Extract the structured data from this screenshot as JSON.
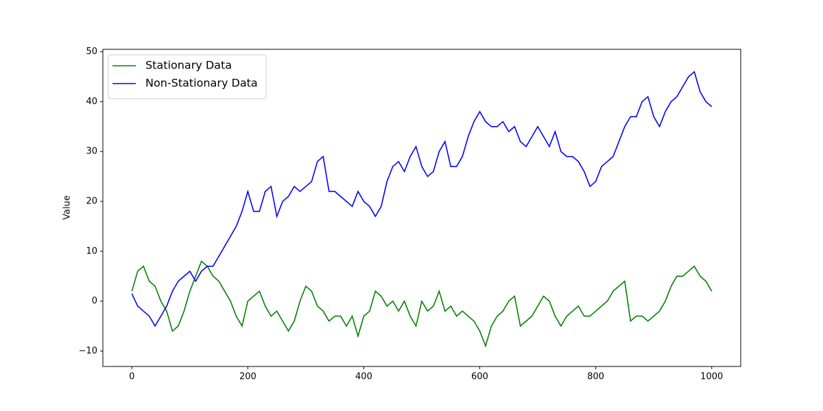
{
  "chart_data": {
    "type": "line",
    "y_label": "Value",
    "x": [
      0,
      10,
      20,
      30,
      40,
      50,
      60,
      70,
      80,
      90,
      100,
      110,
      120,
      130,
      140,
      150,
      160,
      170,
      180,
      190,
      200,
      210,
      220,
      230,
      240,
      250,
      260,
      270,
      280,
      290,
      300,
      310,
      320,
      330,
      340,
      350,
      360,
      370,
      380,
      390,
      400,
      410,
      420,
      430,
      440,
      450,
      460,
      470,
      480,
      490,
      500,
      510,
      520,
      530,
      540,
      550,
      560,
      570,
      580,
      590,
      600,
      610,
      620,
      630,
      640,
      650,
      660,
      670,
      680,
      690,
      700,
      710,
      720,
      730,
      740,
      750,
      760,
      770,
      780,
      790,
      800,
      810,
      820,
      830,
      840,
      850,
      860,
      870,
      880,
      890,
      900,
      910,
      920,
      930,
      940,
      950,
      960,
      970,
      980,
      990,
      1000
    ],
    "series": [
      {
        "name": "Stationary Data",
        "color": "#008000",
        "values": [
          2,
          6,
          7,
          4,
          3,
          0,
          -2,
          -6,
          -5,
          -2,
          2,
          5,
          8,
          7,
          5,
          4,
          2,
          0,
          -3,
          -5,
          0,
          1,
          2,
          -1,
          -3,
          -2,
          -4,
          -6,
          -4,
          0,
          3,
          2,
          -1,
          -2,
          -4,
          -3,
          -3,
          -5,
          -3,
          -7,
          -3,
          -2,
          2,
          1,
          -1,
          0,
          -2,
          0,
          -3,
          -5,
          0,
          -2,
          -1,
          2,
          -2,
          -1,
          -3,
          -2,
          -3,
          -4,
          -6,
          -9,
          -5,
          -3,
          -2,
          0,
          1,
          -5,
          -4,
          -3,
          -1,
          1,
          0,
          -3,
          -5,
          -3,
          -2,
          -1,
          -3,
          -3,
          -2,
          -1,
          0,
          2,
          3,
          4,
          -4,
          -3,
          -3,
          -4,
          -3,
          -2,
          0,
          3,
          5,
          5,
          6,
          7,
          5,
          4,
          2
        ]
      },
      {
        "name": "Non-Stationary Data",
        "color": "#0000ff",
        "values": [
          1.5,
          -1,
          -2,
          -3,
          -5,
          -3,
          -1,
          2,
          4,
          5,
          6,
          4,
          6,
          7,
          7,
          9,
          11,
          13,
          15,
          18,
          22,
          18,
          18,
          22,
          23,
          17,
          20,
          21,
          23,
          22,
          23,
          24,
          28,
          29,
          22,
          22,
          21,
          20,
          19,
          22,
          20,
          19,
          17,
          19,
          24,
          27,
          28,
          26,
          29,
          31,
          27,
          25,
          26,
          30,
          32,
          27,
          27,
          29,
          33,
          36,
          38,
          36,
          35,
          35,
          36,
          34,
          35,
          32,
          31,
          33,
          35,
          33,
          31,
          34,
          30,
          29,
          29,
          28,
          26,
          23,
          24,
          27,
          28,
          29,
          32,
          35,
          37,
          37,
          40,
          41,
          37,
          35,
          38,
          40,
          41,
          43,
          45,
          46,
          42,
          40,
          39
        ]
      }
    ],
    "xlim": [
      -50,
      1050
    ],
    "ylim": [
      -13.1,
      50.5
    ],
    "xticks": [
      0,
      200,
      400,
      600,
      800,
      1000
    ],
    "yticks": [
      {
        "value": -10,
        "label": "−10"
      },
      0,
      10,
      20,
      30,
      40,
      50
    ],
    "legend": "upper left"
  }
}
